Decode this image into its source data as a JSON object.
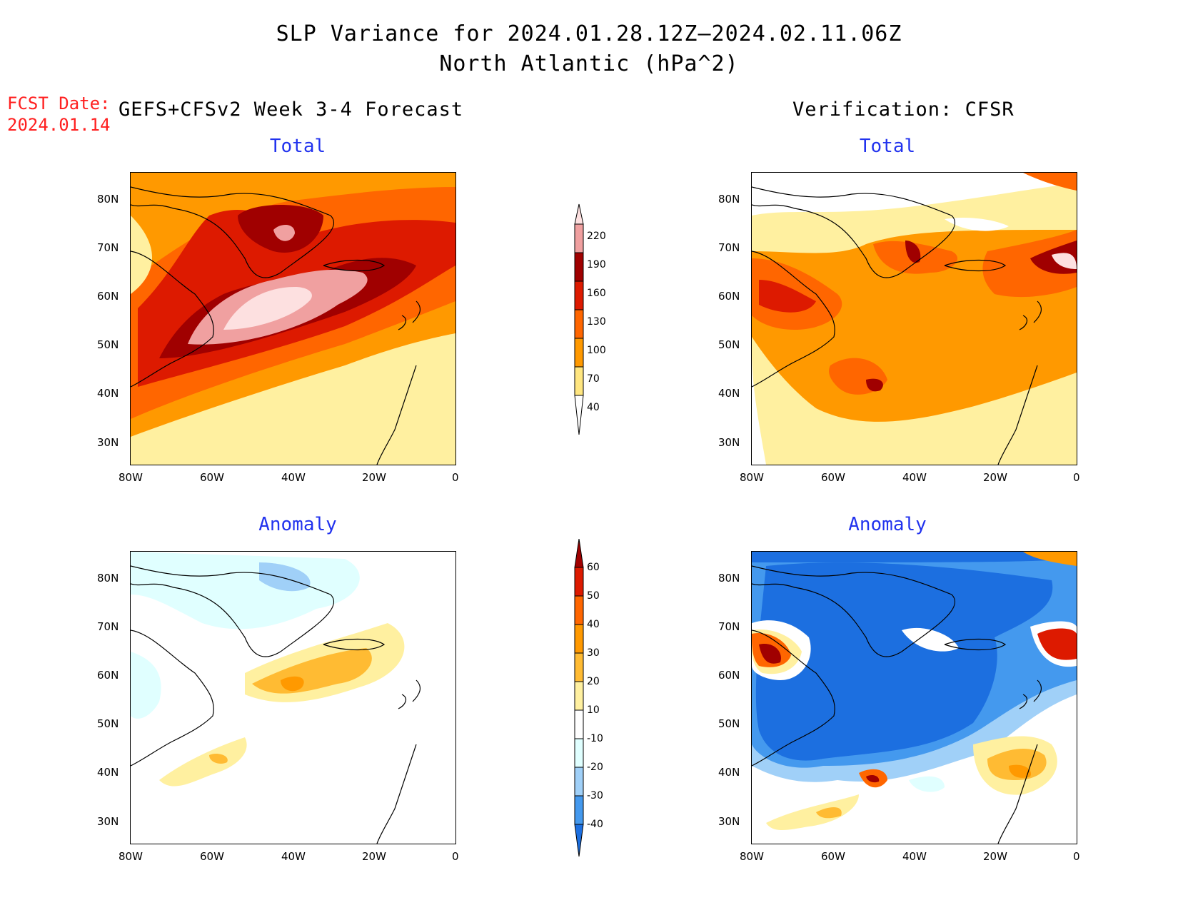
{
  "title_line1": "SLP Variance for 2024.01.28.12Z–2024.02.11.06Z",
  "title_line2": "North Atlantic (hPa^2)",
  "fcst_date_label": "FCST Date:",
  "fcst_date_value": "2024.01.14",
  "left_header": "GEFS+CFSv2 Week 3-4 Forecast",
  "right_header": "Verification: CFSR",
  "panels": {
    "fc_total": {
      "title": "Total"
    },
    "vf_total": {
      "title": "Total"
    },
    "fc_anom": {
      "title": "Anomaly"
    },
    "vf_anom": {
      "title": "Anomaly"
    }
  },
  "lat_ticks": [
    "80N",
    "70N",
    "60N",
    "50N",
    "40N",
    "30N"
  ],
  "lon_ticks": [
    "80W",
    "60W",
    "40W",
    "20W",
    "0"
  ],
  "colorbar_total": {
    "levels": [
      "220",
      "190",
      "160",
      "130",
      "100",
      "70",
      "40"
    ],
    "colors": [
      "#fde0e0",
      "#f0a0a0",
      "#a00000",
      "#dd1a00",
      "#ff6600",
      "#ff9900",
      "#ffe680"
    ]
  },
  "colorbar_anom": {
    "levels": [
      "60",
      "50",
      "40",
      "30",
      "20",
      "10",
      "-10",
      "-20",
      "-30",
      "-40"
    ],
    "colors": [
      "#a00000",
      "#dd1a00",
      "#ff6600",
      "#ff9900",
      "#ffbb33",
      "#fff0a0",
      "#ffffff",
      "#e0ffff",
      "#a0d0f8",
      "#4499ee",
      "#1c6fe0"
    ]
  }
}
